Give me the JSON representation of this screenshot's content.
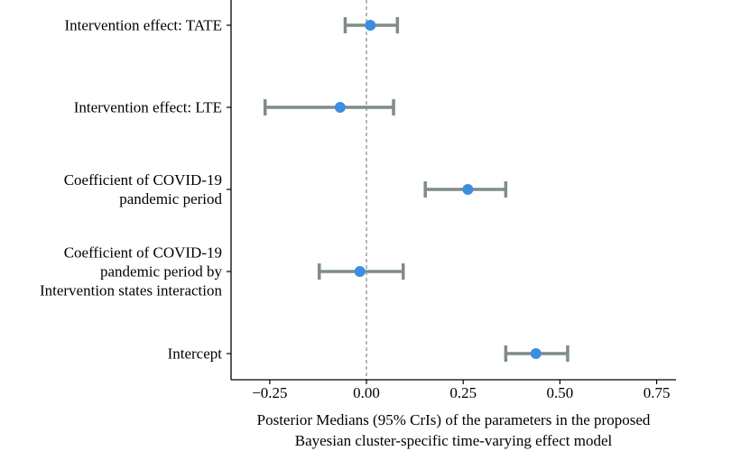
{
  "chart_data": {
    "type": "forest",
    "title": "",
    "xlabel": [
      "Posterior Medians (95% CrIs) of the parameters in the proposed",
      "Bayesian cluster-specific time-varying effect model"
    ],
    "ylabel": "",
    "xlim": [
      -0.35,
      0.8
    ],
    "xticks": [
      -0.25,
      0.0,
      0.25,
      0.5,
      0.75
    ],
    "xtick_labels": [
      "−0.25",
      "0.00",
      "0.25",
      "0.50",
      "0.75"
    ],
    "reference_line": 0,
    "grid": false,
    "colors": {
      "point": "#3b8ee0",
      "interval": "#7f8c8a",
      "reference": "#888888",
      "axis": "#000000"
    },
    "rows": [
      {
        "label": [
          "Intervention effect: TATE"
        ],
        "median": 0.01,
        "lower": -0.055,
        "upper": 0.08
      },
      {
        "label": [
          "Intervention effect: LTE"
        ],
        "median": -0.068,
        "lower": -0.262,
        "upper": 0.07
      },
      {
        "label": [
          "Coefficient of COVID-19",
          "pandemic period"
        ],
        "median": 0.262,
        "lower": 0.152,
        "upper": 0.36
      },
      {
        "label": [
          "Coefficient of  COVID-19",
          "pandemic period by",
          "Intervention states interaction"
        ],
        "median": -0.017,
        "lower": -0.122,
        "upper": 0.095
      },
      {
        "label": [
          "Intercept"
        ],
        "median": 0.438,
        "lower": 0.36,
        "upper": 0.52
      }
    ]
  }
}
